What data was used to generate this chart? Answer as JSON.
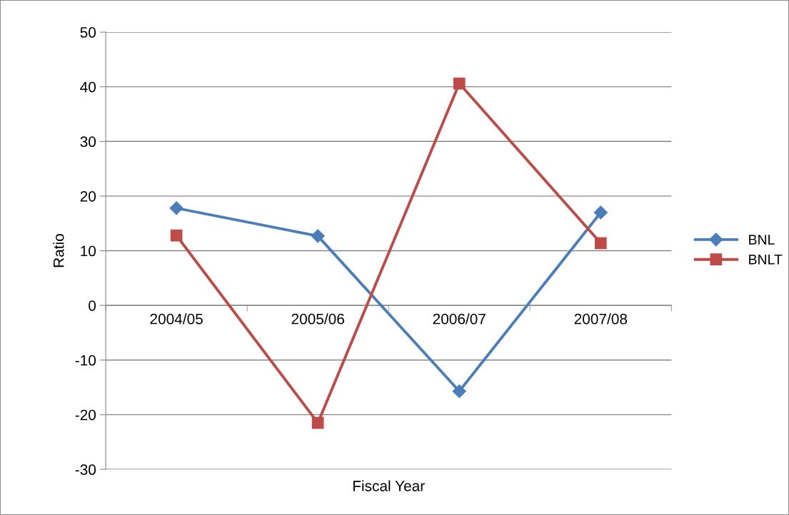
{
  "chart_data": {
    "type": "line",
    "xlabel": "Fiscal Year",
    "ylabel": "Ratio",
    "categories": [
      "2004/05",
      "2005/06",
      "2006/07",
      "2007/08"
    ],
    "series": [
      {
        "name": "BNL",
        "color": "#4a7ebb",
        "values": [
          17.8,
          12.7,
          -15.7,
          17.0
        ],
        "marker": "diamond"
      },
      {
        "name": "BNLT",
        "color": "#be4b48",
        "values": [
          12.8,
          -21.5,
          40.6,
          11.4
        ],
        "marker": "square"
      }
    ],
    "ylim": [
      -30,
      50
    ],
    "yticks": [
      -30,
      -20,
      -10,
      0,
      10,
      20,
      30,
      40,
      50
    ],
    "grid": "y",
    "legend": "right",
    "line_style": "solid"
  }
}
